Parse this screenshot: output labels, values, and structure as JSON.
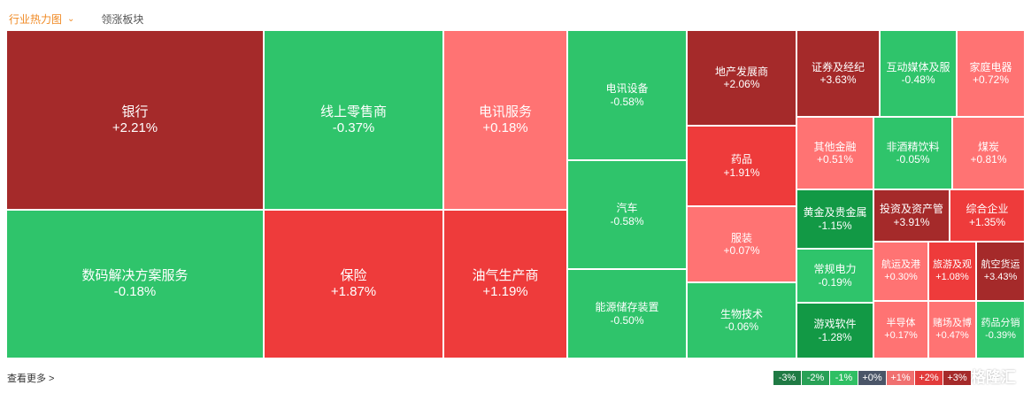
{
  "tabs": {
    "heatmap": "行业热力图",
    "leading": "领涨板块"
  },
  "footer": {
    "more": "查看更多 >"
  },
  "legend": [
    {
      "label": "-3%",
      "color": "#1f7a44"
    },
    {
      "label": "-2%",
      "color": "#28a156"
    },
    {
      "label": "-1%",
      "color": "#2fbf63"
    },
    {
      "label": "+0%",
      "color": "#4a5568"
    },
    {
      "label": "+1%",
      "color": "#f07070"
    },
    {
      "label": "+2%",
      "color": "#e23b3b"
    },
    {
      "label": "+3%",
      "color": "#a52a2a"
    }
  ],
  "watermark": "格隆汇",
  "chart_data": {
    "type": "heatmap",
    "title": "",
    "colors": {
      "dark_red": "#a52a2a",
      "red": "#ee3b3b",
      "light_red": "#ff7373",
      "green": "#2fc46b",
      "dark_green": "#129945"
    },
    "cells": [
      {
        "name": "银行",
        "change": "+2.21%",
        "value": 2.21
      },
      {
        "name": "数码解决方案服务",
        "change": "-0.18%",
        "value": -0.18
      },
      {
        "name": "线上零售商",
        "change": "-0.37%",
        "value": -0.37
      },
      {
        "name": "保险",
        "change": "+1.87%",
        "value": 1.87
      },
      {
        "name": "电讯服务",
        "change": "+0.18%",
        "value": 0.18
      },
      {
        "name": "油气生产商",
        "change": "+1.19%",
        "value": 1.19
      },
      {
        "name": "电讯设备",
        "change": "-0.58%",
        "value": -0.58
      },
      {
        "name": "汽车",
        "change": "-0.58%",
        "value": -0.58
      },
      {
        "name": "能源储存装置",
        "change": "-0.50%",
        "value": -0.5
      },
      {
        "name": "地产发展商",
        "change": "+2.06%",
        "value": 2.06
      },
      {
        "name": "药品",
        "change": "+1.91%",
        "value": 1.91
      },
      {
        "name": "服装",
        "change": "+0.07%",
        "value": 0.07
      },
      {
        "name": "生物技术",
        "change": "-0.06%",
        "value": -0.06
      },
      {
        "name": "证券及经纪",
        "change": "+3.63%",
        "value": 3.63
      },
      {
        "name": "互动媒体及服",
        "change": "-0.48%",
        "value": -0.48
      },
      {
        "name": "家庭电器",
        "change": "+0.72%",
        "value": 0.72
      },
      {
        "name": "其他金融",
        "change": "+0.51%",
        "value": 0.51
      },
      {
        "name": "非酒精饮料",
        "change": "-0.05%",
        "value": -0.05
      },
      {
        "name": "煤炭",
        "change": "+0.81%",
        "value": 0.81
      },
      {
        "name": "黄金及贵金属",
        "change": "-1.15%",
        "value": -1.15
      },
      {
        "name": "投资及资产管",
        "change": "+3.91%",
        "value": 3.91
      },
      {
        "name": "综合企业",
        "change": "+1.35%",
        "value": 1.35
      },
      {
        "name": "常规电力",
        "change": "-0.19%",
        "value": -0.19
      },
      {
        "name": "航运及港",
        "change": "+0.30%",
        "value": 0.3
      },
      {
        "name": "旅游及观",
        "change": "+1.08%",
        "value": 1.08
      },
      {
        "name": "航空货运",
        "change": "+3.43%",
        "value": 3.43
      },
      {
        "name": "游戏软件",
        "change": "-1.28%",
        "value": -1.28
      },
      {
        "name": "半导体",
        "change": "+0.17%",
        "value": 0.17
      },
      {
        "name": "赌场及博",
        "change": "+0.47%",
        "value": 0.47
      },
      {
        "name": "药品分销",
        "change": "-0.39%",
        "value": -0.39
      }
    ]
  }
}
